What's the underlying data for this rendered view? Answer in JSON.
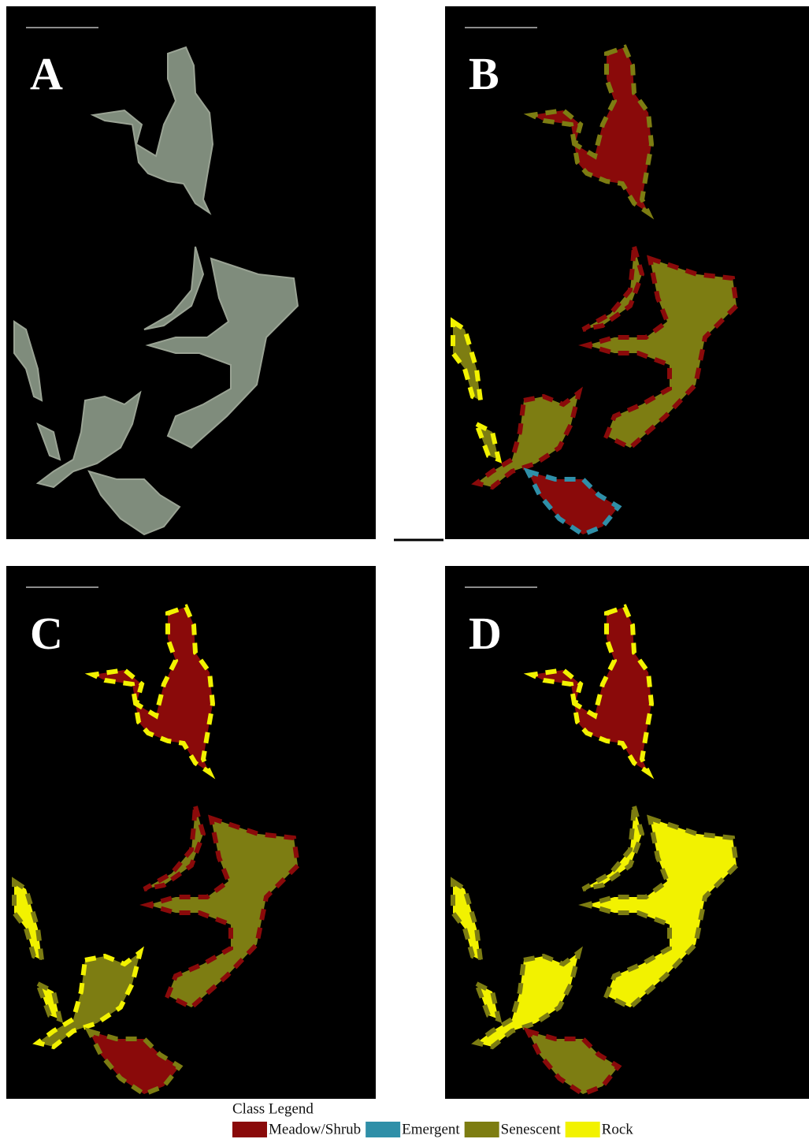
{
  "panels": [
    {
      "label": "A"
    },
    {
      "label": "B"
    },
    {
      "label": "C"
    },
    {
      "label": "D"
    }
  ],
  "legend": {
    "title": "Class Legend",
    "items": [
      {
        "name": "Meadow/Shrub",
        "color": "#8a0a0a"
      },
      {
        "name": "Emergent",
        "color": "#2f8fa8"
      },
      {
        "name": "Senescent",
        "color": "#7d7d12"
      },
      {
        "name": "Rock",
        "color": "#f2f200"
      }
    ]
  }
}
